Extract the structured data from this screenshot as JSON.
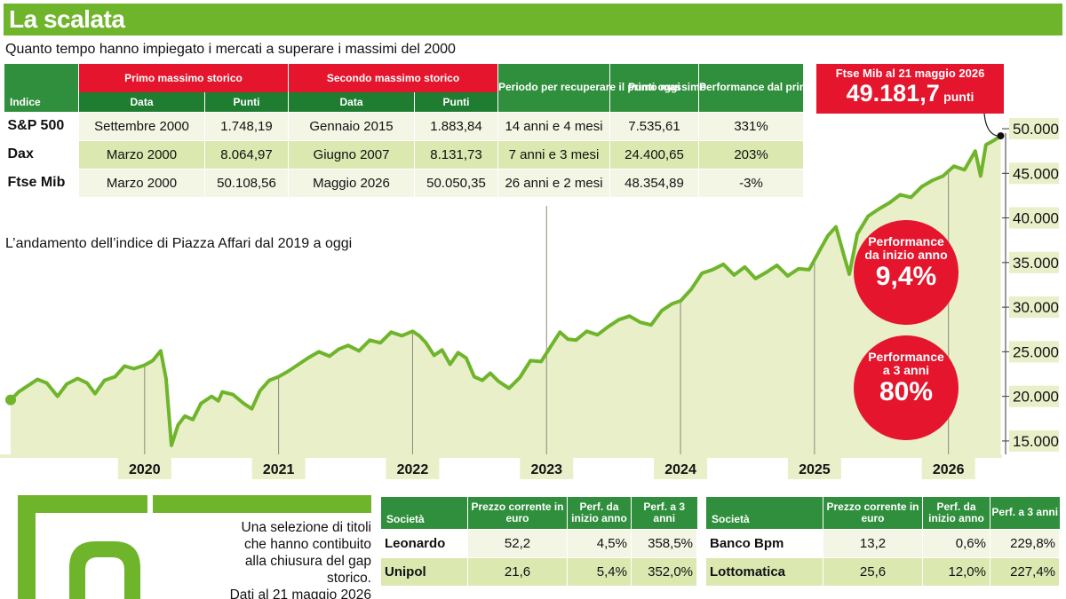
{
  "title": "La scalata",
  "subtitle": "Quanto tempo hanno impiegato i mercati a superare i massimi del 2000",
  "table": {
    "h_indice": "Indice",
    "h_primo": "Primo massimo storico",
    "h_secondo": "Secondo massimo storico",
    "h_periodo": "Periodo per recuperare il primo massimo",
    "h_punti_oggi": "Punti oggi",
    "h_performance": "Performance dal primo massimo a oggi",
    "h_data": "Data",
    "h_punti": "Punti",
    "rows": [
      {
        "indice": "S&P 500",
        "d1": "Settembre 2000",
        "p1": "1.748,19",
        "d2": "Gennaio 2015",
        "p2": "1.883,84",
        "periodo": "14 anni e 4 mesi",
        "oggi": "7.535,61",
        "perf": "331%"
      },
      {
        "indice": "Dax",
        "d1": "Marzo 2000",
        "p1": "8.064,97",
        "d2": "Giugno 2007",
        "p2": "8.131,73",
        "periodo": "7 anni e 3 mesi",
        "oggi": "24.400,65",
        "perf": "203%"
      },
      {
        "indice": "Ftse Mib",
        "d1": "Marzo 2000",
        "p1": "50.108,56",
        "d2": "Maggio 2026",
        "p2": "50.050,35",
        "periodo": "26 anni e 2 mesi",
        "oggi": "48.354,89",
        "perf": "-3%"
      }
    ]
  },
  "ftse_box": {
    "label": "Ftse Mib al 21 maggio 2026",
    "value": "49.181,7",
    "unit": "punti"
  },
  "chart_label": "L’andamento dell’indice di Piazza Affari dal 2019 a oggi",
  "circles": {
    "ytd_label1": "Performance",
    "ytd_label2": "da inizio anno",
    "ytd_value": "9,4%",
    "y3_label1": "Performance",
    "y3_label2": "a 3 anni",
    "y3_value": "80%"
  },
  "selection_text": [
    "Una selezione di titoli",
    "che hanno contibuito",
    "alla chiusura del gap storico.",
    "Dati al 21 maggio 2026"
  ],
  "stocks_left": {
    "headers": [
      "Società",
      "Prezzo corrente in euro",
      "Perf. da inizio anno",
      "Perf. a 3 anni"
    ],
    "rows": [
      {
        "name": "Leonardo",
        "price": "52,2",
        "ytd": "4,5%",
        "y3": "358,5%"
      },
      {
        "name": "Unipol",
        "price": "21,6",
        "ytd": "5,4%",
        "y3": "352,0%"
      }
    ]
  },
  "stocks_right": {
    "headers": [
      "Società",
      "Prezzo corrente in euro",
      "Perf. da inizio anno",
      "Perf. a 3 anni"
    ],
    "rows": [
      {
        "name": "Banco Bpm",
        "price": "13,2",
        "ytd": "0,6%",
        "y3": "229,8%"
      },
      {
        "name": "Lottomatica",
        "price": "25,6",
        "ytd": "12,0%",
        "y3": "227,4%"
      }
    ]
  },
  "colors": {
    "accent_green": "#6fb52c",
    "dark_green": "#2f8f3c",
    "red": "#e4152c",
    "fill": "#e9efc9"
  },
  "chart_data": {
    "type": "area",
    "xlabel": "",
    "ylabel": "",
    "x_ticks": [
      "2020",
      "2021",
      "2022",
      "2023",
      "2024",
      "2025",
      "2026"
    ],
    "y_ticks": [
      "15.000",
      "20.000",
      "25.000",
      "30.000",
      "35.000",
      "40.000",
      "45.000",
      "50.000"
    ],
    "y_tick_values": [
      15000,
      20000,
      25000,
      30000,
      35000,
      40000,
      45000,
      50000
    ],
    "ylim": [
      13500,
      50500
    ],
    "xlim": [
      2019.0,
      2026.4
    ],
    "grid": false,
    "series": [
      {
        "values": [
          [
            2019.0,
            19600
          ],
          [
            2019.06,
            20500
          ],
          [
            2019.13,
            21200
          ],
          [
            2019.2,
            21900
          ],
          [
            2019.27,
            21500
          ],
          [
            2019.35,
            20000
          ],
          [
            2019.42,
            21400
          ],
          [
            2019.5,
            22000
          ],
          [
            2019.57,
            21500
          ],
          [
            2019.63,
            20300
          ],
          [
            2019.7,
            21800
          ],
          [
            2019.78,
            22200
          ],
          [
            2019.85,
            23400
          ],
          [
            2019.92,
            23100
          ],
          [
            2020.0,
            23500
          ],
          [
            2020.06,
            24000
          ],
          [
            2020.12,
            25100
          ],
          [
            2020.16,
            22000
          ],
          [
            2020.2,
            14500
          ],
          [
            2020.25,
            16800
          ],
          [
            2020.3,
            17800
          ],
          [
            2020.36,
            17400
          ],
          [
            2020.42,
            19200
          ],
          [
            2020.5,
            20000
          ],
          [
            2020.55,
            19500
          ],
          [
            2020.58,
            20500
          ],
          [
            2020.66,
            20200
          ],
          [
            2020.74,
            19200
          ],
          [
            2020.8,
            18600
          ],
          [
            2020.86,
            20600
          ],
          [
            2020.93,
            21800
          ],
          [
            2021.0,
            22200
          ],
          [
            2021.07,
            22800
          ],
          [
            2021.14,
            23500
          ],
          [
            2021.22,
            24300
          ],
          [
            2021.3,
            25000
          ],
          [
            2021.38,
            24500
          ],
          [
            2021.45,
            25300
          ],
          [
            2021.52,
            25700
          ],
          [
            2021.6,
            25100
          ],
          [
            2021.68,
            26300
          ],
          [
            2021.76,
            26000
          ],
          [
            2021.84,
            27200
          ],
          [
            2021.92,
            26800
          ],
          [
            2022.0,
            27300
          ],
          [
            2022.05,
            26800
          ],
          [
            2022.1,
            26000
          ],
          [
            2022.16,
            24600
          ],
          [
            2022.22,
            25200
          ],
          [
            2022.28,
            23600
          ],
          [
            2022.34,
            24900
          ],
          [
            2022.4,
            24300
          ],
          [
            2022.46,
            22200
          ],
          [
            2022.52,
            21800
          ],
          [
            2022.58,
            22600
          ],
          [
            2022.64,
            21700
          ],
          [
            2022.72,
            20900
          ],
          [
            2022.8,
            22100
          ],
          [
            2022.88,
            24000
          ],
          [
            2022.96,
            23900
          ],
          [
            2023.04,
            25800
          ],
          [
            2023.1,
            27200
          ],
          [
            2023.16,
            26400
          ],
          [
            2023.22,
            26300
          ],
          [
            2023.3,
            27300
          ],
          [
            2023.38,
            26900
          ],
          [
            2023.46,
            27800
          ],
          [
            2023.54,
            28600
          ],
          [
            2023.62,
            29000
          ],
          [
            2023.7,
            28300
          ],
          [
            2023.78,
            28000
          ],
          [
            2023.86,
            29600
          ],
          [
            2023.94,
            30400
          ],
          [
            2024.0,
            30700
          ],
          [
            2024.08,
            32000
          ],
          [
            2024.16,
            33800
          ],
          [
            2024.24,
            34200
          ],
          [
            2024.32,
            34800
          ],
          [
            2024.4,
            33600
          ],
          [
            2024.48,
            34500
          ],
          [
            2024.56,
            33200
          ],
          [
            2024.64,
            33900
          ],
          [
            2024.72,
            34700
          ],
          [
            2024.8,
            33500
          ],
          [
            2024.88,
            34300
          ],
          [
            2024.96,
            34200
          ],
          [
            2025.04,
            36400
          ],
          [
            2025.1,
            38000
          ],
          [
            2025.16,
            39000
          ],
          [
            2025.22,
            35800
          ],
          [
            2025.26,
            33700
          ],
          [
            2025.32,
            38200
          ],
          [
            2025.4,
            40200
          ],
          [
            2025.48,
            41000
          ],
          [
            2025.56,
            41700
          ],
          [
            2025.64,
            42600
          ],
          [
            2025.72,
            42300
          ],
          [
            2025.8,
            43500
          ],
          [
            2025.88,
            44200
          ],
          [
            2025.96,
            44700
          ],
          [
            2026.04,
            45800
          ],
          [
            2026.12,
            45400
          ],
          [
            2026.2,
            47500
          ],
          [
            2026.24,
            44700
          ],
          [
            2026.28,
            48200
          ],
          [
            2026.34,
            48700
          ],
          [
            2026.39,
            49200
          ]
        ]
      }
    ]
  }
}
